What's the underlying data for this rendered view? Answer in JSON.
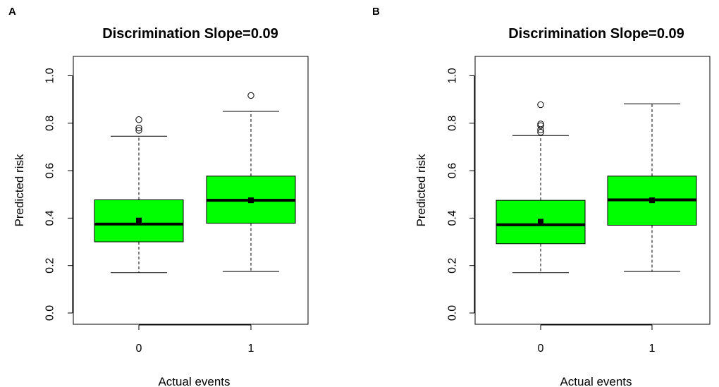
{
  "panels": [
    {
      "label": "A",
      "chart_data": {
        "type": "boxplot",
        "title": "Discrimination Slope=0.09",
        "xlabel": "Actual events",
        "ylabel": "Predicted risk",
        "ylim": [
          0.0,
          1.0
        ],
        "yticks": [
          "0.0",
          "0.2",
          "0.4",
          "0.6",
          "0.8",
          "1.0"
        ],
        "categories": [
          "0",
          "1"
        ],
        "box_color": "#00ff00",
        "boxes": [
          {
            "category": "0",
            "whisker_low": 0.17,
            "q1": 0.3,
            "median": 0.375,
            "q3": 0.477,
            "whisker_high": 0.745,
            "mean": 0.39,
            "outliers": [
              0.77,
              0.78,
              0.815
            ]
          },
          {
            "category": "1",
            "whisker_low": 0.175,
            "q1": 0.378,
            "median": 0.475,
            "q3": 0.577,
            "whisker_high": 0.85,
            "mean": 0.475,
            "outliers": [
              0.917
            ]
          }
        ]
      }
    },
    {
      "label": "B",
      "chart_data": {
        "type": "boxplot",
        "title": "Discrimination Slope=0.09",
        "xlabel": "Actual events",
        "ylabel": "Predicted risk",
        "ylim": [
          0.0,
          1.0
        ],
        "yticks": [
          "0.0",
          "0.2",
          "0.4",
          "0.6",
          "0.8",
          "1.0"
        ],
        "categories": [
          "0",
          "1"
        ],
        "box_color": "#00ff00",
        "boxes": [
          {
            "category": "0",
            "whisker_low": 0.17,
            "q1": 0.292,
            "median": 0.372,
            "q3": 0.475,
            "whisker_high": 0.748,
            "mean": 0.385,
            "outliers": [
              0.762,
              0.772,
              0.79,
              0.797,
              0.878
            ]
          },
          {
            "category": "1",
            "whisker_low": 0.175,
            "q1": 0.37,
            "median": 0.477,
            "q3": 0.577,
            "whisker_high": 0.882,
            "mean": 0.475,
            "outliers": []
          }
        ]
      }
    }
  ]
}
